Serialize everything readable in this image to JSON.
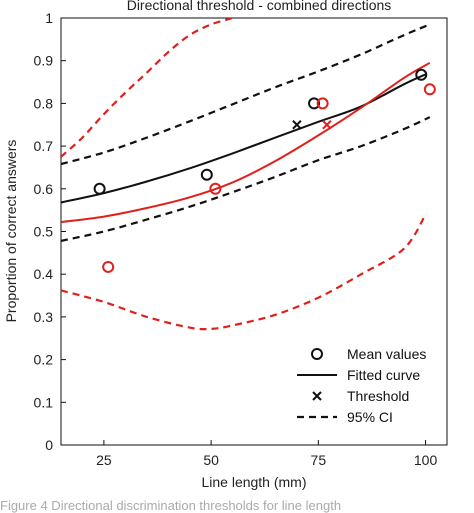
{
  "chart_data": {
    "type": "line",
    "title": "Directional threshold - combined directions",
    "xlabel": "Line length (mm)",
    "ylabel": "Proportion of correct answers",
    "xlim": [
      15,
      105
    ],
    "ylim": [
      0,
      1
    ],
    "xticks": [
      25,
      50,
      75,
      100
    ],
    "yticks": [
      0,
      0.1,
      0.2,
      0.3,
      0.4,
      0.5,
      0.6,
      0.7,
      0.8,
      0.9,
      1
    ],
    "grid": false,
    "legend_position": "bottom-right",
    "colors": {
      "black": "#111111",
      "red": "#e0201b"
    },
    "series": [
      {
        "name": "",
        "color": "black",
        "kind": "mean",
        "x": [
          24,
          49,
          74,
          99
        ],
        "y": [
          0.6,
          0.633,
          0.8,
          0.867
        ]
      },
      {
        "name": "",
        "color": "red",
        "kind": "mean",
        "x": [
          26,
          51,
          76,
          101
        ],
        "y": [
          0.417,
          0.6,
          0.8,
          0.833
        ]
      },
      {
        "name": "",
        "color": "black",
        "kind": "fit",
        "x": [
          15,
          25,
          35,
          45,
          55,
          65,
          75,
          85,
          95,
          100
        ],
        "y": [
          0.568,
          0.59,
          0.617,
          0.648,
          0.683,
          0.72,
          0.757,
          0.793,
          0.845,
          0.868
        ]
      },
      {
        "name": "",
        "color": "red",
        "kind": "fit",
        "x": [
          15,
          25,
          35,
          45,
          55,
          65,
          75,
          85,
          95,
          101
        ],
        "y": [
          0.522,
          0.535,
          0.555,
          0.58,
          0.615,
          0.665,
          0.725,
          0.79,
          0.86,
          0.895
        ]
      },
      {
        "name": "",
        "color": "black",
        "kind": "threshold",
        "x": [
          70
        ],
        "y": [
          0.75
        ]
      },
      {
        "name": "",
        "color": "red",
        "kind": "threshold",
        "x": [
          77
        ],
        "y": [
          0.75
        ]
      },
      {
        "name": "",
        "color": "black",
        "kind": "ci",
        "x": [
          15,
          25,
          35,
          45,
          55,
          65,
          75,
          85,
          95,
          101
        ],
        "y": [
          0.658,
          0.685,
          0.72,
          0.758,
          0.798,
          0.838,
          0.875,
          0.915,
          0.96,
          0.985
        ]
      },
      {
        "name": "",
        "color": "black",
        "kind": "ci",
        "x": [
          15,
          25,
          35,
          45,
          55,
          65,
          75,
          85,
          95,
          101
        ],
        "y": [
          0.478,
          0.5,
          0.528,
          0.558,
          0.592,
          0.628,
          0.667,
          0.7,
          0.74,
          0.768
        ]
      },
      {
        "name": "",
        "color": "red",
        "kind": "ci",
        "x": [
          15,
          20,
          25,
          30,
          35,
          40,
          45,
          50,
          55
        ],
        "y": [
          0.675,
          0.72,
          0.775,
          0.825,
          0.872,
          0.92,
          0.96,
          0.985,
          1.0
        ]
      },
      {
        "name": "",
        "color": "red",
        "kind": "ci",
        "x": [
          15,
          25,
          35,
          45,
          50,
          55,
          65,
          75,
          85,
          95,
          100
        ],
        "y": [
          0.362,
          0.335,
          0.3,
          0.275,
          0.272,
          0.28,
          0.305,
          0.345,
          0.4,
          0.46,
          0.54
        ]
      }
    ],
    "legend": [
      {
        "symbol": "circle",
        "label": "Mean values"
      },
      {
        "symbol": "line",
        "label": "Fitted curve"
      },
      {
        "symbol": "cross",
        "label": "Threshold"
      },
      {
        "symbol": "dashed",
        "label": "95% CI"
      }
    ]
  },
  "caption": "Figure 4 Directional discrimination thresholds for line length"
}
